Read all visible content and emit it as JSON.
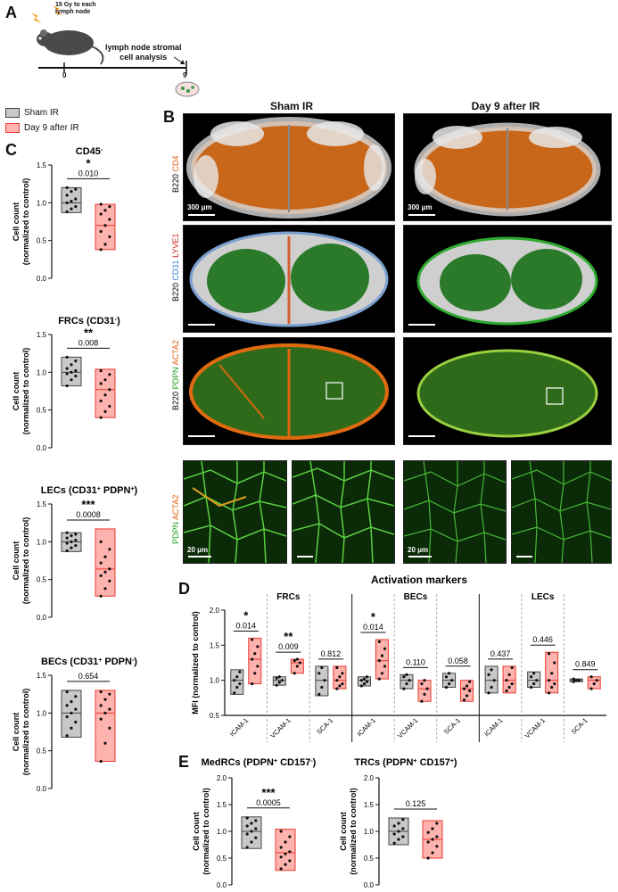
{
  "panelA": {
    "letter": "A",
    "dose_text_line1": "15 Gy to each",
    "dose_text_line2": "lymph node",
    "analysis_line1": "lymph node stromal",
    "analysis_line2": "cell analysis",
    "day_start": "0",
    "day_end": "9"
  },
  "legend": {
    "items": [
      {
        "label": "Sham IR",
        "color": "#c8c8c8",
        "edge": "#444444"
      },
      {
        "label": "Day 9 after IR",
        "color": "#ffb3ae",
        "edge": "#e83a2f"
      }
    ]
  },
  "panelB": {
    "letter": "B",
    "col_sham": "Sham IR",
    "col_day9": "Day 9 after IR",
    "row1_label_white": "B220",
    "row1_label_orange": "CD4",
    "row2_label_white": "B220",
    "row2_label_blue": "CD31",
    "row2_label_red": "LYVE1",
    "row3_label_white": "B220",
    "row3_label_green": "PDPN",
    "row3_label_orange": "ACTA2",
    "row4_label_green": "PDPN",
    "row4_label_orange": "ACTA2",
    "scale_large": "300 μm",
    "scale_small": "20 μm"
  },
  "chart_data": [
    {
      "panel": "C",
      "type": "box-dot",
      "title": "CD45",
      "title_sup": "-",
      "ylabel": "Cell count (normalized to control)",
      "ylim": [
        0,
        1.5
      ],
      "yticks": [
        "0.0",
        "0.5",
        "1.0",
        "1.5"
      ],
      "p_value": "0.010",
      "stars": "*",
      "groups": [
        {
          "name": "Sham IR",
          "min": 0.87,
          "max": 1.2,
          "median": 1.0,
          "points": [
            0.88,
            0.92,
            0.95,
            1.0,
            1.02,
            1.05,
            1.1,
            1.15,
            1.18,
            1.2
          ]
        },
        {
          "name": "Day 9 after IR",
          "min": 0.38,
          "max": 0.98,
          "median": 0.7,
          "points": [
            0.38,
            0.45,
            0.55,
            0.62,
            0.7,
            0.78,
            0.85,
            0.9,
            0.95,
            0.98
          ]
        }
      ]
    },
    {
      "panel": "C",
      "type": "box-dot",
      "title": "FRCs (CD31",
      "title_sup": "-",
      "title_tail": ")",
      "ylabel": "Cell count (normalized to control)",
      "ylim": [
        0,
        1.5
      ],
      "yticks": [
        "0.0",
        "0.5",
        "1.0",
        "1.5"
      ],
      "p_value": "0.008",
      "stars": "**",
      "groups": [
        {
          "name": "Sham IR",
          "min": 0.82,
          "max": 1.2,
          "median": 1.0,
          "points": [
            0.82,
            0.9,
            0.95,
            0.98,
            1.0,
            1.02,
            1.05,
            1.1,
            1.15,
            1.2
          ]
        },
        {
          "name": "Day 9 after IR",
          "min": 0.4,
          "max": 1.04,
          "median": 0.77,
          "points": [
            0.4,
            0.48,
            0.55,
            0.62,
            0.7,
            0.77,
            0.85,
            0.9,
            0.97,
            1.02
          ]
        }
      ]
    },
    {
      "panel": "C",
      "type": "box-dot",
      "title": "LECs (CD31",
      "title_sup": "+",
      "title_mid": " PDPN",
      "title_sup2": "+",
      "title_tail": ")",
      "ylabel": "Cell count (normalized to control)",
      "ylim": [
        0,
        1.5
      ],
      "yticks": [
        "0.0",
        "0.5",
        "1.0",
        "1.5"
      ],
      "p_value": "0.0008",
      "stars": "***",
      "groups": [
        {
          "name": "Sham IR",
          "min": 0.87,
          "max": 1.12,
          "median": 1.0,
          "points": [
            0.88,
            0.92,
            0.95,
            0.98,
            1.0,
            1.02,
            1.05,
            1.08,
            1.1,
            1.12
          ]
        },
        {
          "name": "Day 9 after IR",
          "min": 0.28,
          "max": 1.17,
          "median": 0.64,
          "points": [
            0.28,
            0.38,
            0.48,
            0.55,
            0.6,
            0.64,
            0.72,
            0.8,
            0.9,
            1.0
          ]
        }
      ]
    },
    {
      "panel": "C",
      "type": "box-dot",
      "title": "BECs (CD31",
      "title_sup": "+",
      "title_mid": " PDPN",
      "title_sup2": "-",
      "title_tail": ")",
      "ylabel": "Cell count (normalized to control)",
      "ylim": [
        0,
        1.5
      ],
      "yticks": [
        "0.0",
        "0.5",
        "1.0",
        "1.5"
      ],
      "p_value": "0.654",
      "stars": "",
      "groups": [
        {
          "name": "Sham IR",
          "min": 0.68,
          "max": 1.3,
          "median": 1.0,
          "points": [
            0.7,
            0.8,
            0.88,
            0.95,
            1.0,
            1.05,
            1.1,
            1.15,
            1.22,
            1.28
          ]
        },
        {
          "name": "Day 9 after IR",
          "min": 0.36,
          "max": 1.3,
          "median": 1.0,
          "points": [
            0.36,
            0.6,
            0.8,
            0.92,
            1.0,
            1.05,
            1.1,
            1.18,
            1.25,
            1.28
          ]
        }
      ]
    },
    {
      "panel": "D",
      "type": "grouped-box-dot",
      "title": "Activation markers",
      "ylabel": "MFI (normalized to control)",
      "ylim": [
        0.5,
        2.0
      ],
      "yticks": [
        "0.5",
        "1.0",
        "1.5",
        "2.0"
      ],
      "sections": [
        "FRCs",
        "BECs",
        "LECs"
      ],
      "markers": [
        {
          "section": "FRCs",
          "name": "ICAM-1",
          "p": "0.014",
          "stars": "*",
          "sham": {
            "min": 0.8,
            "max": 1.15,
            "median": 1.0,
            "points": [
              0.82,
              0.9,
              0.95,
              1.0,
              1.05,
              1.12
            ]
          },
          "ir": {
            "min": 0.95,
            "max": 1.6,
            "median": 1.3,
            "points": [
              0.95,
              1.1,
              1.2,
              1.3,
              1.38,
              1.48,
              1.58
            ]
          }
        },
        {
          "section": "FRCs",
          "name": "VCAM-1",
          "p": "0.009",
          "stars": "**",
          "sham": {
            "min": 0.93,
            "max": 1.05,
            "median": 1.0,
            "points": [
              0.93,
              0.97,
              1.0,
              1.03,
              1.05
            ]
          },
          "ir": {
            "min": 1.1,
            "max": 1.3,
            "median": 1.25,
            "points": [
              1.1,
              1.2,
              1.25,
              1.28,
              1.3
            ]
          }
        },
        {
          "section": "FRCs",
          "name": "SCA-1",
          "p": "0.812",
          "stars": "",
          "sham": {
            "min": 0.78,
            "max": 1.2,
            "median": 1.0,
            "points": [
              0.8,
              0.9,
              1.0,
              1.1,
              1.18
            ]
          },
          "ir": {
            "min": 0.88,
            "max": 1.2,
            "median": 1.0,
            "points": [
              0.88,
              0.92,
              0.95,
              1.0,
              1.05,
              1.1,
              1.18
            ]
          }
        },
        {
          "section": "BECs",
          "name": "ICAM-1",
          "p": "0.014",
          "stars": "*",
          "sham": {
            "min": 0.92,
            "max": 1.05,
            "median": 1.0,
            "points": [
              0.92,
              0.95,
              0.98,
              1.0,
              1.02,
              1.05
            ]
          },
          "ir": {
            "min": 1.02,
            "max": 1.58,
            "median": 1.28,
            "points": [
              1.02,
              1.1,
              1.2,
              1.28,
              1.35,
              1.45,
              1.55
            ]
          }
        },
        {
          "section": "BECs",
          "name": "VCAM-1",
          "p": "0.110",
          "stars": "",
          "sham": {
            "min": 0.88,
            "max": 1.08,
            "median": 1.0,
            "points": [
              0.88,
              0.95,
              1.0,
              1.05,
              1.08
            ]
          },
          "ir": {
            "min": 0.7,
            "max": 1.0,
            "median": 0.88,
            "points": [
              0.7,
              0.8,
              0.88,
              0.95,
              1.0
            ]
          }
        },
        {
          "section": "BECs",
          "name": "SCA-1",
          "p": "0.058",
          "stars": "",
          "sham": {
            "min": 0.9,
            "max": 1.1,
            "median": 1.0,
            "points": [
              0.9,
              0.95,
              1.0,
              1.05,
              1.1
            ]
          },
          "ir": {
            "min": 0.7,
            "max": 1.0,
            "median": 0.88,
            "points": [
              0.72,
              0.78,
              0.85,
              0.88,
              0.92,
              0.98
            ]
          }
        },
        {
          "section": "LECs",
          "name": "ICAM-1",
          "p": "0.437",
          "stars": "",
          "sham": {
            "min": 0.82,
            "max": 1.2,
            "median": 1.0,
            "points": [
              0.82,
              0.9,
              1.0,
              1.08,
              1.15
            ]
          },
          "ir": {
            "min": 0.82,
            "max": 1.2,
            "median": 1.0,
            "points": [
              0.85,
              0.9,
              0.95,
              1.0,
              1.08,
              1.18
            ]
          }
        },
        {
          "section": "LECs",
          "name": "VCAM-1",
          "p": "0.446",
          "stars": "",
          "sham": {
            "min": 0.9,
            "max": 1.12,
            "median": 1.0,
            "points": [
              0.9,
              0.95,
              1.0,
              1.05,
              1.1
            ]
          },
          "ir": {
            "min": 0.82,
            "max": 1.4,
            "median": 1.0,
            "points": [
              0.82,
              0.9,
              0.95,
              1.0,
              1.1,
              1.25,
              1.38
            ]
          }
        },
        {
          "section": "LECs",
          "name": "SCA-1",
          "p": "0.849",
          "stars": "",
          "sham": {
            "min": 0.98,
            "max": 1.02,
            "median": 1.0,
            "points": [
              0.98,
              1.0,
              1.0,
              1.02
            ]
          },
          "ir": {
            "min": 0.88,
            "max": 1.05,
            "median": 1.0,
            "points": [
              0.88,
              0.95,
              1.0,
              1.05
            ]
          }
        }
      ]
    },
    {
      "panel": "E",
      "type": "box-dot",
      "title": "MedRCs (PDPN",
      "title_sup": "+",
      "title_mid": " CD157",
      "title_sup2": "-",
      "title_tail": ")",
      "ylabel": "Cell count (normalized to control)",
      "ylim": [
        0,
        2.0
      ],
      "yticks": [
        "0.0",
        "0.5",
        "1.0",
        "1.5",
        "2.0"
      ],
      "p_value": "0.0005",
      "stars": "***",
      "groups": [
        {
          "name": "Sham IR",
          "min": 0.68,
          "max": 1.27,
          "median": 1.0,
          "points": [
            0.7,
            0.8,
            0.88,
            0.95,
            1.0,
            1.05,
            1.1,
            1.15,
            1.2,
            1.25
          ]
        },
        {
          "name": "Day 9 after IR",
          "min": 0.27,
          "max": 1.04,
          "median": 0.6,
          "points": [
            0.3,
            0.38,
            0.45,
            0.52,
            0.58,
            0.62,
            0.7,
            0.8,
            0.9,
            1.0
          ]
        }
      ]
    },
    {
      "panel": "E",
      "type": "box-dot",
      "title": "TRCs (PDPN",
      "title_sup": "+",
      "title_mid": " CD157",
      "title_sup2": "+",
      "title_tail": ")",
      "ylabel": "Cell count (normalized to control)",
      "ylim": [
        0,
        2.0
      ],
      "yticks": [
        "0.0",
        "0.5",
        "1.0",
        "1.5",
        "2.0"
      ],
      "p_value": "0.125",
      "stars": "",
      "groups": [
        {
          "name": "Sham IR",
          "min": 0.75,
          "max": 1.25,
          "median": 1.0,
          "points": [
            0.78,
            0.85,
            0.9,
            0.95,
            1.0,
            1.05,
            1.1,
            1.15,
            1.22
          ]
        },
        {
          "name": "Day 9 after IR",
          "min": 0.5,
          "max": 1.2,
          "median": 0.85,
          "points": [
            0.5,
            0.6,
            0.72,
            0.8,
            0.85,
            0.9,
            0.98,
            1.05,
            1.15
          ]
        }
      ]
    }
  ],
  "panel_letters": {
    "C": "C",
    "D": "D",
    "E": "E"
  }
}
